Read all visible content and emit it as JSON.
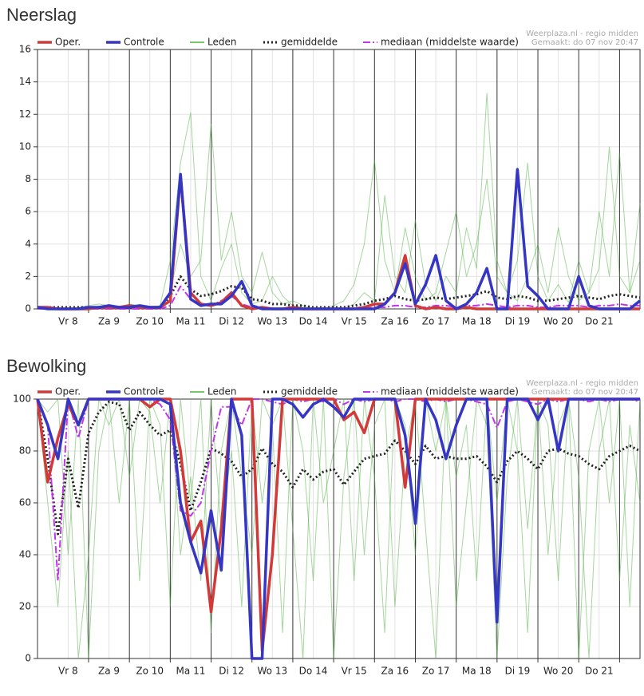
{
  "chart_data": [
    {
      "type": "line",
      "title": "Neerslag",
      "annotations": [
        "Weerplaza.nl - regio midden",
        "Gemaakt: do 07 nov 20:47"
      ],
      "x": [
        7.75,
        8,
        8.25,
        8.5,
        8.75,
        9,
        9.25,
        9.5,
        9.75,
        10,
        10.25,
        10.5,
        10.75,
        11,
        11.25,
        11.5,
        11.75,
        12,
        12.25,
        12.5,
        12.75,
        13,
        13.25,
        13.5,
        13.75,
        14,
        14.25,
        14.5,
        14.75,
        15,
        15.25,
        15.5,
        15.75,
        16,
        16.25,
        16.5,
        16.75,
        17,
        17.25,
        17.5,
        17.75,
        18,
        18.25,
        18.5,
        18.75,
        19,
        19.25,
        19.5,
        19.75,
        20,
        20.25,
        20.5,
        20.75,
        21,
        21.25,
        21.5,
        21.75,
        22,
        22.25,
        22.5
      ],
      "xlim": [
        7.75,
        22.5
      ],
      "xticks": [
        {
          "value": 8.5,
          "label": "Vr 8"
        },
        {
          "value": 9.5,
          "label": "Za 9"
        },
        {
          "value": 10.5,
          "label": "Zo 10"
        },
        {
          "value": 11.5,
          "label": "Ma 11"
        },
        {
          "value": 12.5,
          "label": "Di 12"
        },
        {
          "value": 13.5,
          "label": "Wo 13"
        },
        {
          "value": 14.5,
          "label": "Do 14"
        },
        {
          "value": 15.5,
          "label": "Vr 15"
        },
        {
          "value": 16.5,
          "label": "Za 16"
        },
        {
          "value": 17.5,
          "label": "Zo 17"
        },
        {
          "value": 18.5,
          "label": "Ma 18"
        },
        {
          "value": 19.5,
          "label": "Di 19"
        },
        {
          "value": 20.5,
          "label": "Wo 20"
        },
        {
          "value": 21.5,
          "label": "Do 21"
        }
      ],
      "xgrid_major": [
        9,
        10,
        11,
        12,
        13,
        14,
        15,
        16,
        17,
        18,
        19,
        20,
        21,
        22
      ],
      "ylim": [
        0,
        16
      ],
      "yticks": [
        0,
        2,
        4,
        6,
        8,
        10,
        12,
        14,
        16
      ],
      "grid": true,
      "series": [
        {
          "name": "Oper.",
          "color": "#d23a3a",
          "width": 3.5,
          "values": [
            0.1,
            0.1,
            0,
            0,
            0,
            0,
            0.1,
            0.1,
            0.1,
            0.2,
            0.1,
            0.1,
            0.1,
            0.5,
            8.2,
            1.0,
            0.3,
            0.2,
            0.4,
            1.0,
            0.2,
            0,
            0.1,
            0,
            0,
            0.1,
            0,
            0,
            0,
            0,
            0,
            0,
            0.1,
            0.3,
            0.3,
            1.0,
            3.3,
            0.2,
            0,
            0.1,
            0,
            0,
            0.1,
            0,
            0,
            0,
            0,
            0,
            0,
            0,
            0,
            0,
            0,
            0,
            0,
            0,
            0,
            0,
            0,
            0
          ]
        },
        {
          "name": "Controle",
          "color": "#3636c4",
          "width": 3.5,
          "values": [
            0.1,
            0,
            0,
            0,
            0,
            0.1,
            0.1,
            0.2,
            0.1,
            0.1,
            0.2,
            0.1,
            0.1,
            1.0,
            8.3,
            0.6,
            0.2,
            0.3,
            0.3,
            0.8,
            1.7,
            0.2,
            0,
            0,
            0,
            0,
            0,
            0,
            0,
            0,
            0,
            0,
            0,
            0,
            0.3,
            1.0,
            2.8,
            0.3,
            1.5,
            3.3,
            0.5,
            0,
            0.3,
            1.0,
            2.5,
            0,
            0,
            8.6,
            1.4,
            0.8,
            0,
            0,
            0,
            2.0,
            0.2,
            0,
            0,
            0,
            0,
            0.5
          ]
        },
        {
          "name": "Leden",
          "color": "#4caf3c",
          "width": 1,
          "members": [
            [
              0,
              0,
              0,
              0,
              0.1,
              0.2,
              0.3,
              0.2,
              0.1,
              0.3,
              0.2,
              0.1,
              0.2,
              3.0,
              9.0,
              12.1,
              2.0,
              0.5,
              2.5,
              4.0,
              1.0,
              0.3,
              0.5,
              2.0,
              0.8,
              0.2,
              0.1,
              0,
              0,
              0.2,
              0.5,
              1.5,
              4.0,
              9.2,
              3.0,
              1.0,
              5.0,
              2.0,
              0.5,
              1.0,
              3.5,
              6.0,
              2.0,
              4.0,
              8.0,
              2.0,
              1.0,
              3.0,
              9.0,
              2.0,
              0.5,
              1.5,
              0.4,
              3.0,
              1.0,
              6.0,
              2.0,
              9.6,
              1.0,
              3.0
            ],
            [
              0,
              0,
              0,
              0,
              0,
              0,
              0.1,
              0,
              0.1,
              0.2,
              0,
              0.1,
              0,
              1.0,
              4.0,
              2.0,
              3.0,
              11.4,
              3.0,
              6.0,
              2.0,
              1.0,
              3.5,
              1.0,
              0.3,
              0.5,
              0.2,
              0,
              0.1,
              0,
              0,
              0.3,
              1.0,
              0.5,
              7.0,
              2.0,
              1.0,
              5.5,
              1.5,
              0.5,
              2.0,
              1.0,
              5.0,
              2.5,
              13.3,
              3.0,
              1.0,
              0.5,
              2.0,
              4.0,
              1.0,
              5.0,
              2.0,
              0.5,
              1.0,
              2.5,
              10.0,
              2.0,
              1.0,
              6.5
            ]
          ]
        },
        {
          "name": "gemiddelde",
          "color": "#222222",
          "width": 3,
          "dash": "2,3",
          "values": [
            0.1,
            0.1,
            0.1,
            0.1,
            0.1,
            0.1,
            0.1,
            0.1,
            0.1,
            0.1,
            0.1,
            0.1,
            0.1,
            0.8,
            2.0,
            1.2,
            0.8,
            0.9,
            1.1,
            1.4,
            1.3,
            0.6,
            0.5,
            0.3,
            0.3,
            0.2,
            0.2,
            0.1,
            0.1,
            0.1,
            0.1,
            0.2,
            0.3,
            0.5,
            0.6,
            0.8,
            0.6,
            0.5,
            0.6,
            0.7,
            0.6,
            0.7,
            0.8,
            0.9,
            1.1,
            0.7,
            0.6,
            0.8,
            0.7,
            0.5,
            0.5,
            0.6,
            0.7,
            0.8,
            0.7,
            0.6,
            0.8,
            0.9,
            0.8,
            0.7
          ]
        },
        {
          "name": "mediaan (middelste waarde)",
          "color": "#c433ee",
          "width": 2,
          "dash": "9,3,2,3",
          "values": [
            0,
            0,
            0,
            0,
            0,
            0,
            0,
            0,
            0,
            0,
            0,
            0,
            0,
            0.2,
            1.4,
            0.6,
            0.3,
            0.2,
            0.5,
            0.8,
            0.3,
            0.1,
            0,
            0,
            0,
            0,
            0,
            0,
            0,
            0,
            0,
            0,
            0,
            0.1,
            0.1,
            0.2,
            0.2,
            0.1,
            0.1,
            0.2,
            0.2,
            0.1,
            0.2,
            0.2,
            0.3,
            0.2,
            0.1,
            0.2,
            0.2,
            0.1,
            0.1,
            0.2,
            0.2,
            0.2,
            0.1,
            0.2,
            0.2,
            0.3,
            0.2,
            0.2
          ]
        }
      ]
    },
    {
      "type": "line",
      "title": "Bewolking",
      "annotations": [
        "Weerplaza.nl - regio midden",
        "Gemaakt: do 07 nov 20:47"
      ],
      "x": [
        7.75,
        8,
        8.25,
        8.5,
        8.75,
        9,
        9.25,
        9.5,
        9.75,
        10,
        10.25,
        10.5,
        10.75,
        11,
        11.25,
        11.5,
        11.75,
        12,
        12.25,
        12.5,
        12.75,
        13,
        13.25,
        13.5,
        13.75,
        14,
        14.25,
        14.5,
        14.75,
        15,
        15.25,
        15.5,
        15.75,
        16,
        16.25,
        16.5,
        16.75,
        17,
        17.25,
        17.5,
        17.75,
        18,
        18.25,
        18.5,
        18.75,
        19,
        19.25,
        19.5,
        19.75,
        20,
        20.25,
        20.5,
        20.75,
        21,
        21.25,
        21.5,
        21.75,
        22,
        22.25,
        22.5
      ],
      "xlim": [
        7.75,
        22.5
      ],
      "xticks": [
        {
          "value": 8.5,
          "label": "Vr 8"
        },
        {
          "value": 9.5,
          "label": "Za 9"
        },
        {
          "value": 10.5,
          "label": "Zo 10"
        },
        {
          "value": 11.5,
          "label": "Ma 11"
        },
        {
          "value": 12.5,
          "label": "Di 12"
        },
        {
          "value": 13.5,
          "label": "Wo 13"
        },
        {
          "value": 14.5,
          "label": "Do 14"
        },
        {
          "value": 15.5,
          "label": "Vr 15"
        },
        {
          "value": 16.5,
          "label": "Za 16"
        },
        {
          "value": 17.5,
          "label": "Zo 17"
        },
        {
          "value": 18.5,
          "label": "Ma 18"
        },
        {
          "value": 19.5,
          "label": "Di 19"
        },
        {
          "value": 20.5,
          "label": "Wo 20"
        },
        {
          "value": 21.5,
          "label": "Do 21"
        }
      ],
      "xgrid_major": [
        9,
        10,
        11,
        12,
        13,
        14,
        15,
        16,
        17,
        18,
        19,
        20,
        21,
        22
      ],
      "ylim": [
        0,
        100
      ],
      "yticks": [
        0,
        20,
        40,
        60,
        80,
        100
      ],
      "grid": true,
      "series": [
        {
          "name": "Oper.",
          "color": "#d23a3a",
          "width": 3.5,
          "values": [
            100,
            68,
            85,
            98,
            90,
            100,
            100,
            100,
            100,
            100,
            100,
            97,
            100,
            100,
            80,
            45,
            53,
            18,
            50,
            100,
            100,
            100,
            3,
            40,
            100,
            100,
            100,
            100,
            100,
            100,
            92,
            95,
            87,
            100,
            100,
            100,
            66,
            100,
            100,
            100,
            100,
            100,
            100,
            100,
            100,
            100,
            100,
            100,
            100,
            100,
            100,
            100,
            100,
            100,
            100,
            100,
            100,
            100,
            100,
            100
          ]
        },
        {
          "name": "Controle",
          "color": "#3636c4",
          "width": 3.5,
          "values": [
            100,
            90,
            77,
            100,
            90,
            100,
            100,
            100,
            100,
            100,
            100,
            100,
            100,
            98,
            60,
            45,
            33,
            57,
            34,
            100,
            86,
            0,
            0,
            100,
            100,
            98,
            93,
            98,
            100,
            97,
            93,
            100,
            100,
            100,
            100,
            100,
            86,
            52,
            100,
            92,
            77,
            90,
            100,
            100,
            100,
            14,
            100,
            100,
            100,
            92,
            100,
            80,
            100,
            100,
            100,
            100,
            100,
            100,
            100,
            100
          ]
        },
        {
          "name": "Leden",
          "color": "#4caf3c",
          "width": 1,
          "members": [
            [
              100,
              60,
              20,
              80,
              0,
              40,
              100,
              90,
              100,
              70,
              100,
              95,
              60,
              100,
              40,
              70,
              30,
              100,
              50,
              80,
              20,
              100,
              60,
              90,
              10,
              100,
              80,
              30,
              100,
              0,
              70,
              100,
              40,
              90,
              100,
              20,
              80,
              100,
              50,
              0,
              100,
              70,
              90,
              30,
              100,
              60,
              100,
              80,
              10,
              100,
              40,
              90,
              100,
              70,
              0,
              80,
              100,
              30,
              90,
              60
            ],
            [
              100,
              95,
              100,
              40,
              100,
              0,
              80,
              100,
              60,
              100,
              30,
              100,
              90,
              20,
              100,
              60,
              100,
              10,
              80,
              100,
              70,
              40,
              100,
              90,
              100,
              50,
              0,
              100,
              60,
              80,
              100,
              30,
              100,
              70,
              10,
              100,
              90,
              40,
              100,
              80,
              100,
              20,
              60,
              100,
              90,
              0,
              70,
              100,
              50,
              100,
              90,
              30,
              100,
              0,
              80,
              100,
              60,
              100,
              20,
              100
            ]
          ]
        },
        {
          "name": "gemiddelde",
          "color": "#222222",
          "width": 3,
          "dash": "2,3",
          "values": [
            100,
            77,
            48,
            77,
            58,
            87,
            95,
            99,
            98,
            88,
            95,
            90,
            86,
            88,
            75,
            57,
            68,
            81,
            79,
            76,
            70,
            73,
            81,
            75,
            72,
            66,
            73,
            69,
            72,
            73,
            67,
            72,
            77,
            78,
            79,
            84,
            80,
            75,
            82,
            77,
            78,
            77,
            77,
            78,
            74,
            68,
            76,
            80,
            77,
            73,
            80,
            81,
            79,
            78,
            75,
            73,
            78,
            80,
            82,
            80
          ]
        },
        {
          "name": "mediaan (middelste waarde)",
          "color": "#c433ee",
          "width": 2,
          "dash": "9,3,2,3",
          "values": [
            100,
            90,
            30,
            100,
            85,
            100,
            100,
            100,
            100,
            100,
            100,
            100,
            98,
            92,
            57,
            55,
            60,
            80,
            97,
            97,
            90,
            100,
            100,
            99,
            98,
            100,
            99,
            100,
            99,
            100,
            98,
            100,
            99,
            100,
            100,
            99,
            100,
            100,
            99,
            100,
            99,
            100,
            100,
            99,
            98,
            89,
            99,
            100,
            99,
            98,
            100,
            99,
            100,
            100,
            99,
            100,
            99,
            100,
            100,
            99
          ]
        }
      ]
    }
  ]
}
